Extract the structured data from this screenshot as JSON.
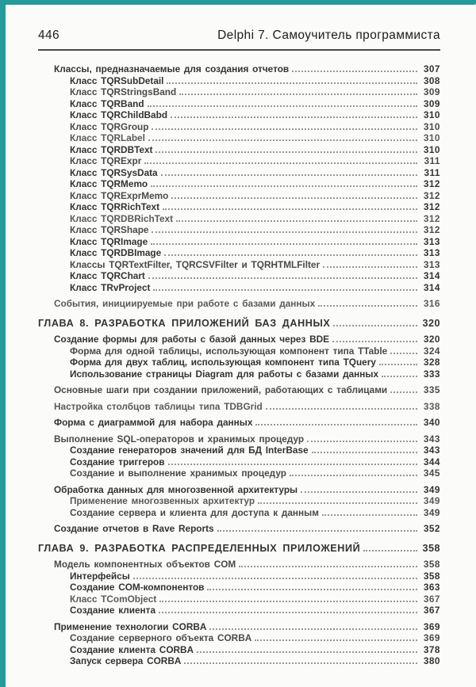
{
  "page": {
    "accent_color": "#249a9a"
  },
  "header": {
    "page_number": "446",
    "book_title": "Delphi 7. Самоучитель программиста"
  },
  "toc": {
    "entries": [
      {
        "level": 2,
        "title": "Классы, предназначаемые для создания отчетов",
        "page": "307"
      },
      {
        "level": 3,
        "title": "Класс TQRSubDetail",
        "page": "308"
      },
      {
        "level": 3,
        "title": "Класс TQRStringsBand",
        "page": "309"
      },
      {
        "level": 3,
        "title": "Класс TQRBand",
        "page": "309"
      },
      {
        "level": 3,
        "title": "Класс TQRChildBabd",
        "page": "310"
      },
      {
        "level": 3,
        "title": "Класс TQRGroup",
        "page": "310"
      },
      {
        "level": 3,
        "title": "Класс TQRLabel",
        "page": "310"
      },
      {
        "level": 3,
        "title": "Класс TQRDBText",
        "page": "310"
      },
      {
        "level": 3,
        "title": "Класс TQRExpr",
        "page": "311"
      },
      {
        "level": 3,
        "title": "Класс TQRSysData",
        "page": "311"
      },
      {
        "level": 3,
        "title": "Класс TQRMemo",
        "page": "312"
      },
      {
        "level": 3,
        "title": "Класс TQRExprMemo",
        "page": "312"
      },
      {
        "level": 3,
        "title": "Класс TQRRichText",
        "page": "312"
      },
      {
        "level": 3,
        "title": "Класс TQRDBRichText",
        "page": "312"
      },
      {
        "level": 3,
        "title": "Класс TQRShape",
        "page": "312"
      },
      {
        "level": 3,
        "title": "Класс TQRImage",
        "page": "313"
      },
      {
        "level": 3,
        "title": "Класс TQRDBImage",
        "page": "313"
      },
      {
        "level": 3,
        "title": "Классы TQRTextFilter, TQRCSVFilter и TQRHTMLFilter",
        "page": "313"
      },
      {
        "level": 3,
        "title": "Класс TQRChart",
        "page": "314"
      },
      {
        "level": 3,
        "title": "Класс TRvProject",
        "page": "314"
      },
      {
        "level": 2,
        "title": "События, инициируемые при работе с базами данных",
        "page": "316"
      },
      {
        "level": 1,
        "title": "ГЛАВА 8. РАЗРАБОТКА ПРИЛОЖЕНИЙ БАЗ ДАННЫХ",
        "page": "320"
      },
      {
        "level": 2,
        "title": "Создание формы для работы с базой данных через BDE",
        "page": "320"
      },
      {
        "level": 3,
        "title": "Форма для одной таблицы, использующая компонент типа TTable",
        "page": "324"
      },
      {
        "level": 3,
        "title": "Форма для двух таблиц, использующая компонент типа TQuery",
        "page": "328"
      },
      {
        "level": 3,
        "title": "Использование страницы Diagram для работы с базами данных",
        "page": "333"
      },
      {
        "level": 2,
        "title": "Основные шаги при создании приложений, работающих с таблицами",
        "page": "335"
      },
      {
        "level": 2,
        "title": "Настройка столбцов таблицы типа TDBGrid",
        "page": "338"
      },
      {
        "level": 2,
        "title": "Форма с диаграммой для набора данных",
        "page": "340"
      },
      {
        "level": 2,
        "title": "Выполнение SQL-операторов и хранимых процедур",
        "page": "343"
      },
      {
        "level": 3,
        "title": "Создание генераторов значений для БД InterBase",
        "page": "343"
      },
      {
        "level": 3,
        "title": "Создание триггеров",
        "page": "344"
      },
      {
        "level": 3,
        "title": "Создание и выполнение хранимых процедур",
        "page": "345"
      },
      {
        "level": 2,
        "title": "Обработка данных для многозвенной архитектуры",
        "page": "349"
      },
      {
        "level": 3,
        "title": "Применение многозвенных архитектур",
        "page": "349"
      },
      {
        "level": 3,
        "title": "Создание сервера и клиента для доступа к данным",
        "page": "349"
      },
      {
        "level": 2,
        "title": "Создание отчетов в Rave Reports",
        "page": "352"
      },
      {
        "level": 1,
        "title": "ГЛАВА 9. РАЗРАБОТКА РАСПРЕДЕЛЕННЫХ ПРИЛОЖЕНИЙ",
        "page": "358"
      },
      {
        "level": 2,
        "title": "Модель компонентных объектов COM",
        "page": "358"
      },
      {
        "level": 3,
        "title": "Интерфейсы",
        "page": "358"
      },
      {
        "level": 3,
        "title": "Создание COM-компонентов",
        "page": "363"
      },
      {
        "level": 3,
        "title": "Класс TComObject",
        "page": "367"
      },
      {
        "level": 3,
        "title": "Создание клиента",
        "page": "367"
      },
      {
        "level": 2,
        "title": "Применение технологии CORBA",
        "page": "369"
      },
      {
        "level": 3,
        "title": "Создание серверного объекта CORBA",
        "page": "369"
      },
      {
        "level": 3,
        "title": "Создание клиента CORBA",
        "page": "378"
      },
      {
        "level": 3,
        "title": "Запуск сервера CORBA",
        "page": "380"
      }
    ]
  }
}
